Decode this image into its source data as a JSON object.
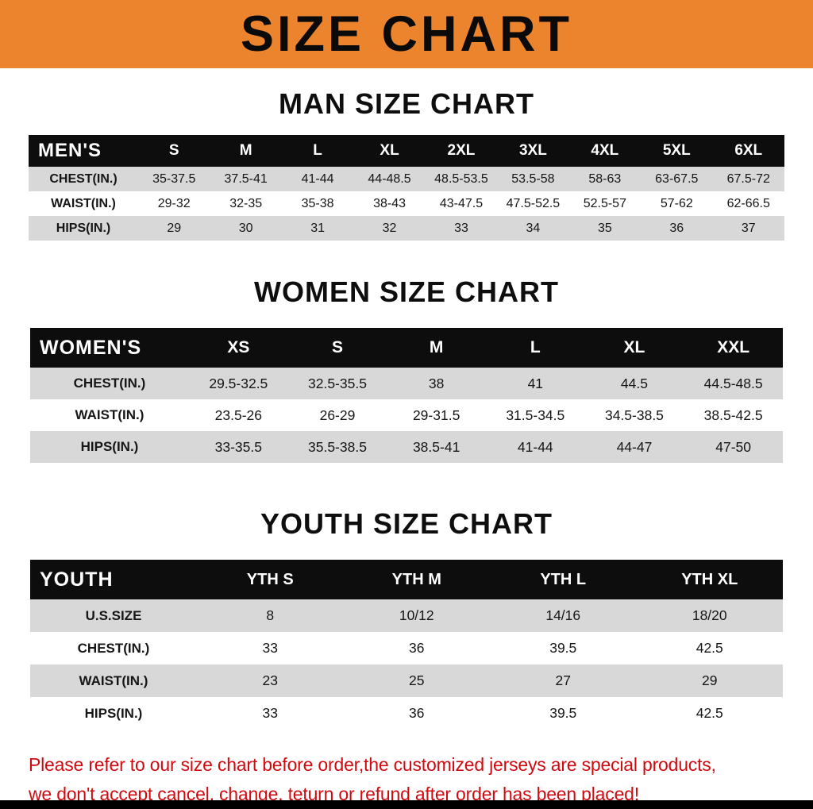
{
  "banner": {
    "title": "SIZE CHART"
  },
  "colors": {
    "banner_bg": "#EC832D",
    "table_header_bg": "#0D0D0D",
    "table_header_text": "#FFFFFF",
    "row_alt_bg": "#D8D8D8",
    "footer_text": "#D10A10",
    "bottom_bar": "#000000"
  },
  "chart_data": [
    {
      "type": "table",
      "title": "MAN SIZE CHART",
      "header": [
        "MEN'S",
        "S",
        "M",
        "L",
        "XL",
        "2XL",
        "3XL",
        "4XL",
        "5XL",
        "6XL"
      ],
      "rows": [
        [
          "CHEST(IN.)",
          "35-37.5",
          "37.5-41",
          "41-44",
          "44-48.5",
          "48.5-53.5",
          "53.5-58",
          "58-63",
          "63-67.5",
          "67.5-72"
        ],
        [
          "WAIST(IN.)",
          "29-32",
          "32-35",
          "35-38",
          "38-43",
          "43-47.5",
          "47.5-52.5",
          "52.5-57",
          "57-62",
          "62-66.5"
        ],
        [
          "HIPS(IN.)",
          "29",
          "30",
          "31",
          "32",
          "33",
          "34",
          "35",
          "36",
          "37"
        ]
      ]
    },
    {
      "type": "table",
      "title": "WOMEN SIZE CHART",
      "header": [
        "WOMEN'S",
        "XS",
        "S",
        "M",
        "L",
        "XL",
        "XXL"
      ],
      "rows": [
        [
          "CHEST(IN.)",
          "29.5-32.5",
          "32.5-35.5",
          "38",
          "41",
          "44.5",
          "44.5-48.5"
        ],
        [
          "WAIST(IN.)",
          "23.5-26",
          "26-29",
          "29-31.5",
          "31.5-34.5",
          "34.5-38.5",
          "38.5-42.5"
        ],
        [
          "HIPS(IN.)",
          "33-35.5",
          "35.5-38.5",
          "38.5-41",
          "41-44",
          "44-47",
          "47-50"
        ]
      ]
    },
    {
      "type": "table",
      "title": "YOUTH SIZE CHART",
      "header": [
        "YOUTH",
        "YTH S",
        "YTH M",
        "YTH L",
        "YTH XL"
      ],
      "rows": [
        [
          "U.S.SIZE",
          "8",
          "10/12",
          "14/16",
          "18/20"
        ],
        [
          "CHEST(IN.)",
          "33",
          "36",
          "39.5",
          "42.5"
        ],
        [
          "WAIST(IN.)",
          "23",
          "25",
          "27",
          "29"
        ],
        [
          "HIPS(IN.)",
          "33",
          "36",
          "39.5",
          "42.5"
        ]
      ]
    }
  ],
  "footer": {
    "line1": "Please refer to our size chart before order,the customized jerseys are special products,",
    "line2": "we don't accept cancel, change, teturn or refund after order has been placed!"
  }
}
